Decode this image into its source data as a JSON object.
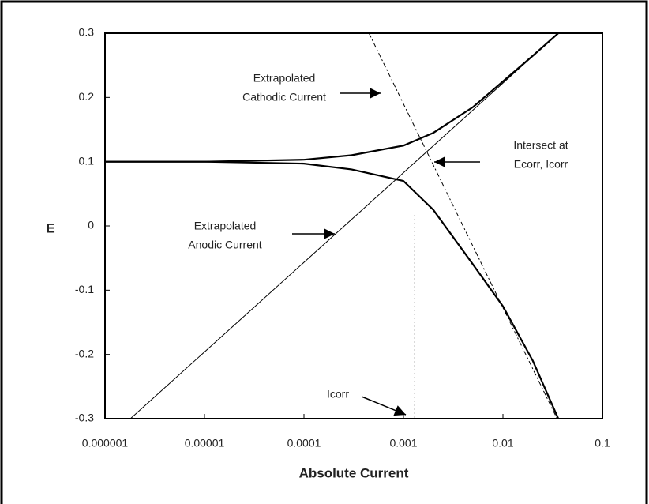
{
  "chart_data": {
    "type": "line",
    "x_label": "Absolute Current",
    "y_label": "E",
    "log_x": true,
    "xlim": [
      1e-06,
      0.1
    ],
    "ylim": [
      -0.3,
      0.3
    ],
    "xticks": [
      1e-06,
      1e-05,
      0.0001,
      0.001,
      0.01,
      0.1
    ],
    "yticks": [
      0.3,
      0.2,
      0.1,
      0,
      -0.1,
      -0.2,
      -0.3
    ],
    "series": [
      {
        "color": "#000000",
        "style": "solid",
        "width": 2.2,
        "x": [
          1e-06,
          1e-05,
          0.0001,
          0.0003,
          0.001,
          0.002,
          0.005,
          0.01,
          0.02,
          0.036
        ],
        "values": [
          0.1,
          0.1,
          0.103,
          0.11,
          0.125,
          0.145,
          0.185,
          0.225,
          0.265,
          0.3
        ]
      },
      {
        "color": "#000000",
        "style": "solid",
        "width": 2.2,
        "x": [
          1e-06,
          1e-05,
          0.0001,
          0.0003,
          0.001,
          0.002,
          0.005,
          0.01,
          0.02,
          0.036
        ],
        "values": [
          0.1,
          0.1,
          0.097,
          0.088,
          0.07,
          0.025,
          -0.06,
          -0.125,
          -0.21,
          -0.3
        ]
      },
      {
        "color": "#000000",
        "style": "dashdot",
        "width": 1,
        "x": [
          0.00045,
          0.035
        ],
        "values": [
          0.3,
          -0.3
        ]
      },
      {
        "color": "#000000",
        "style": "solid",
        "width": 1,
        "x": [
          1.8e-06,
          0.036
        ],
        "values": [
          -0.3,
          0.3
        ]
      }
    ],
    "vline": {
      "value": 0.0013,
      "style": "dotted"
    },
    "annotations": [
      {
        "lines": [
          "Extrapolated",
          "Cathodic Current"
        ]
      },
      {
        "lines": [
          "Intersect at",
          "Ecorr, Icorr"
        ]
      },
      {
        "lines": [
          "Extrapolated",
          "Anodic Current"
        ]
      },
      {
        "lines": [
          "Icorr"
        ]
      }
    ]
  }
}
